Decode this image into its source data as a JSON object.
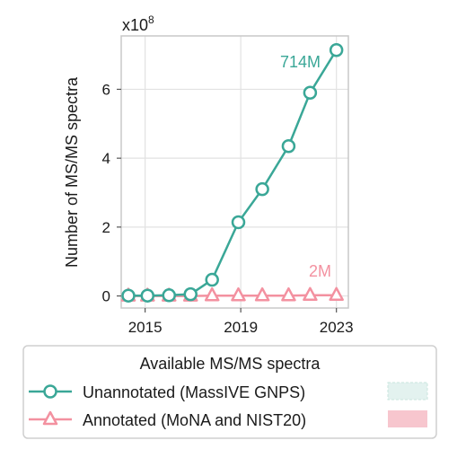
{
  "chart_data": {
    "type": "line",
    "xlabel": "",
    "ylabel": "Number of MS/MS spectra",
    "y_multiplier_label": "x10",
    "y_multiplier_exponent": "8",
    "xlim": [
      2014,
      2023.5
    ],
    "ylim": [
      -0.35,
      7.55
    ],
    "x_ticks": [
      2015,
      2019,
      2023
    ],
    "y_ticks": [
      0,
      2,
      4,
      6
    ],
    "grid": true,
    "x": [
      2014.3,
      2015.1,
      2016,
      2016.9,
      2017.8,
      2018.9,
      2019.9,
      2021,
      2021.9,
      2023
    ],
    "series": [
      {
        "name": "Unannotated (MassIVE GNPS)",
        "color": "#3aa797",
        "marker": "circle",
        "values": [
          0.01,
          0.01,
          0.02,
          0.05,
          0.47,
          2.14,
          3.1,
          4.35,
          5.9,
          7.14
        ],
        "end_label": "714M"
      },
      {
        "name": "Annotated (MoNA and NIST20)",
        "color": "#f391a0",
        "marker": "triangle",
        "values": [
          0.0,
          0.0,
          0.0,
          0.0,
          0.01,
          0.01,
          0.01,
          0.01,
          0.02,
          0.02
        ],
        "end_label": "2M"
      }
    ],
    "legend": {
      "title": "Available MS/MS spectra",
      "placement": "bottom",
      "swatches": [
        "#e3f2ef",
        "#f7c6ce"
      ]
    }
  }
}
